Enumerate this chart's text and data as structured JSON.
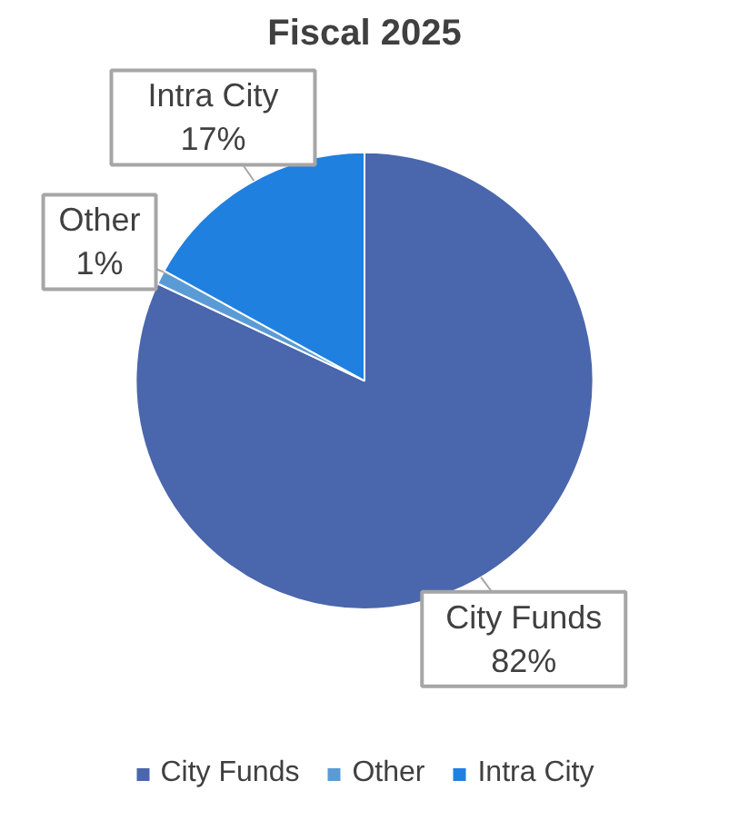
{
  "chart_data": {
    "type": "pie",
    "title": "Fiscal 2025",
    "categories": [
      "City Funds",
      "Other",
      "Intra City"
    ],
    "values": [
      82,
      1,
      17
    ],
    "colors": [
      "#4a66ac",
      "#5b9bd5",
      "#2080e0"
    ],
    "value_labels": [
      "82%",
      "1%",
      "17%"
    ],
    "legend": "bottom"
  }
}
